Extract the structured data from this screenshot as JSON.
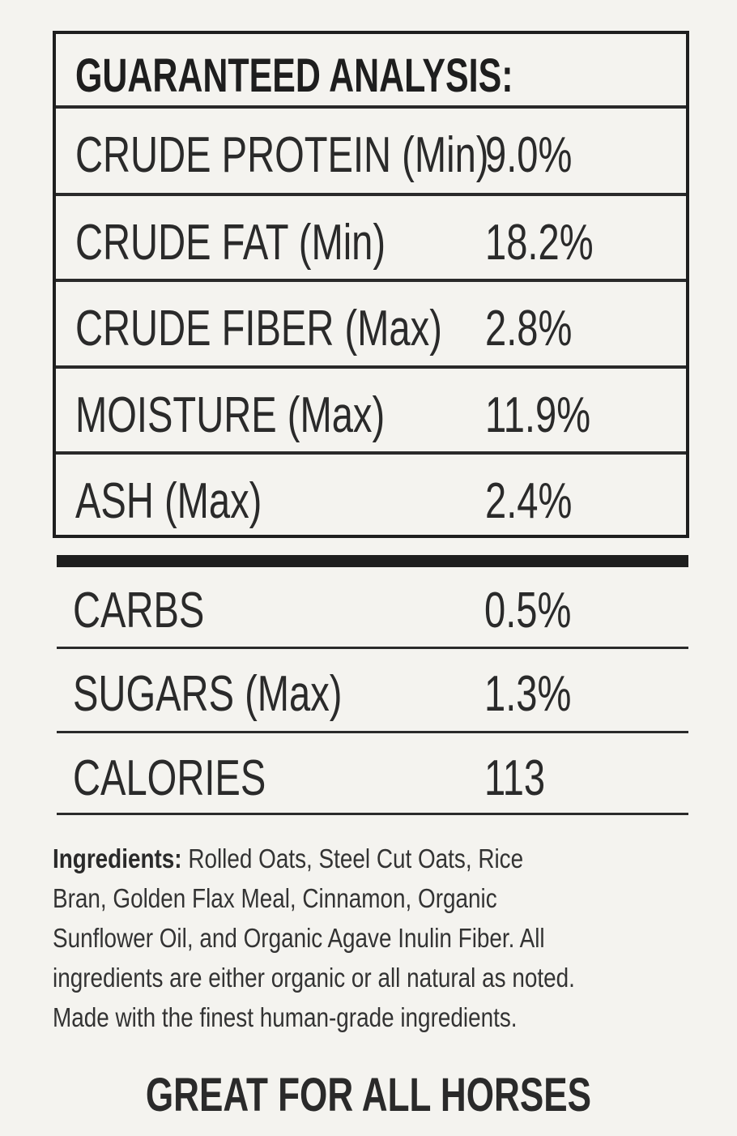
{
  "analysis": {
    "title": "GUARANTEED ANALYSIS:",
    "rows": [
      {
        "label": "CRUDE PROTEIN (Min)",
        "value": "9.0%"
      },
      {
        "label": "CRUDE FAT (Min)",
        "value": "18.2%"
      },
      {
        "label": "CRUDE FIBER (Max)",
        "value": "2.8%"
      },
      {
        "label": "MOISTURE (Max)",
        "value": "11.9%"
      },
      {
        "label": "ASH (Max)",
        "value": "2.4%"
      }
    ]
  },
  "extra": [
    {
      "label": "CARBS",
      "value": "0.5%"
    },
    {
      "label": "SUGARS (Max)",
      "value": "1.3%"
    },
    {
      "label": "CALORIES",
      "value": "113"
    }
  ],
  "ingredients": {
    "heading": "Ingredients:",
    "lines": [
      " Rolled Oats, Steel Cut Oats, Rice",
      "Bran, Golden Flax Meal, Cinnamon, Organic",
      "Sunflower Oil, and Organic Agave Inulin Fiber. All",
      "ingredients are either organic or all natural as noted.",
      "Made with the finest human-grade ingredients."
    ]
  },
  "footer": "GREAT FOR ALL HORSES"
}
